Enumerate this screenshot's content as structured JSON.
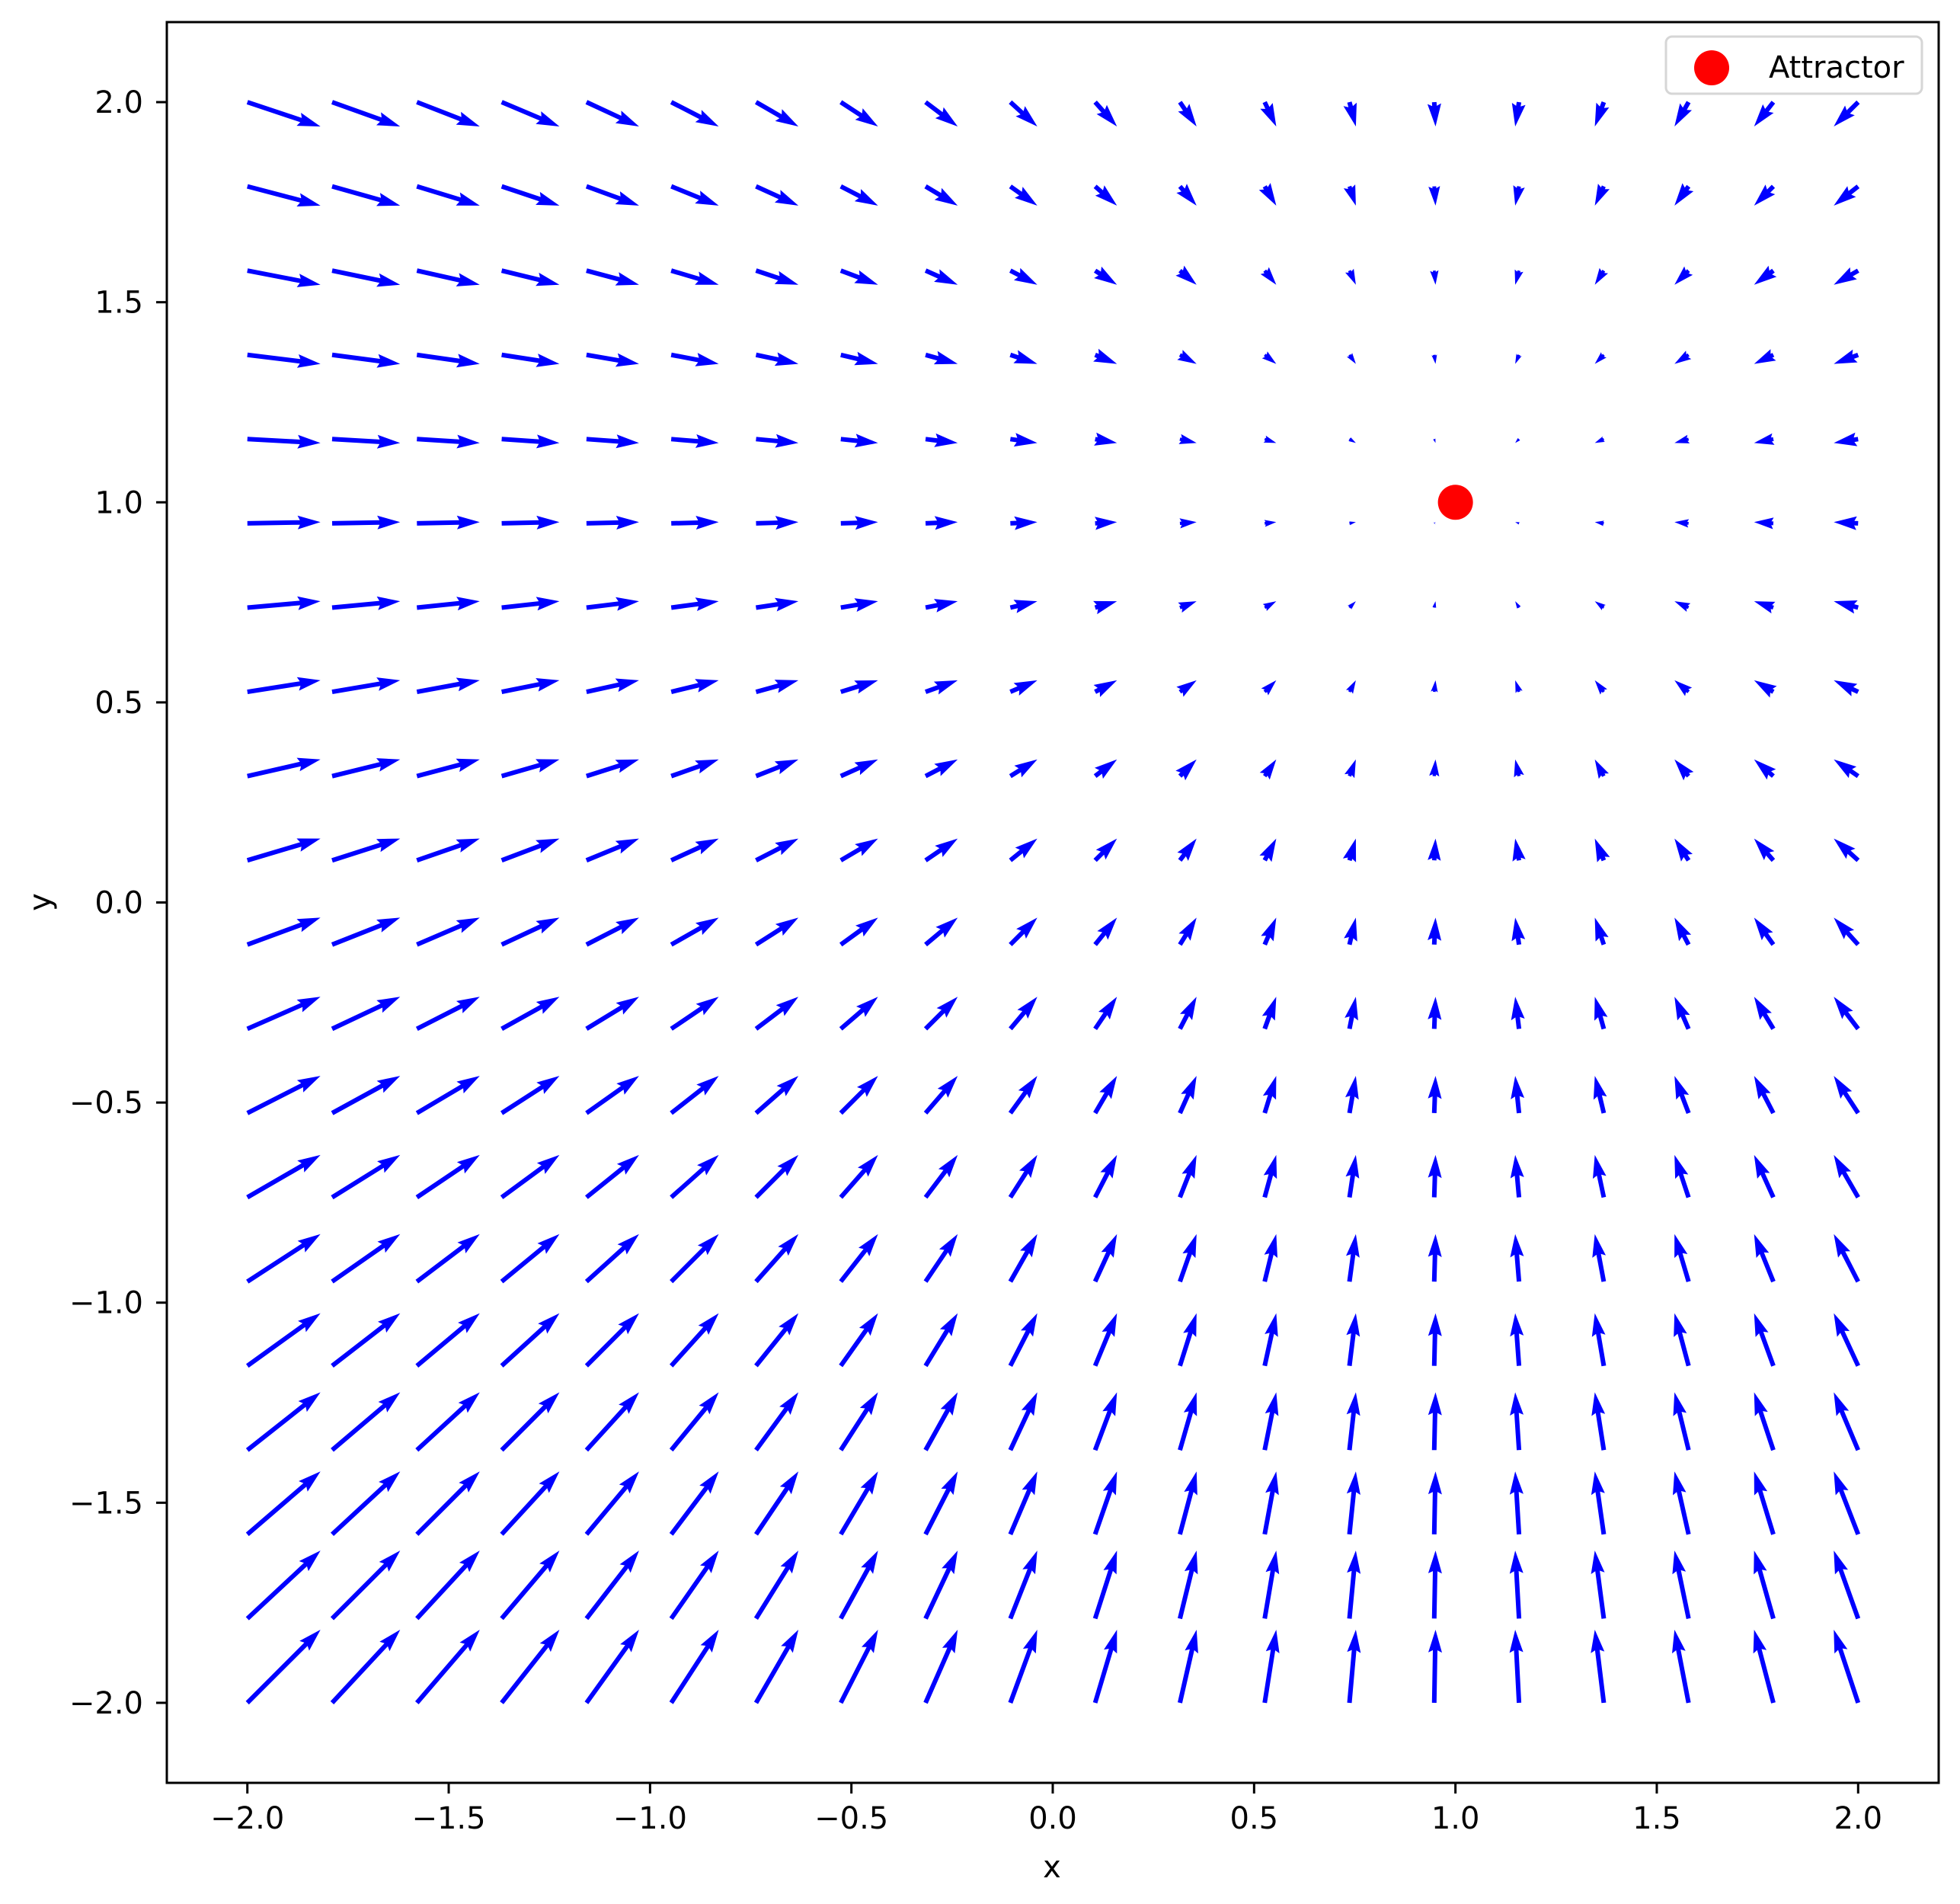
{
  "chart_data": {
    "type": "quiver",
    "title": "",
    "xlabel": "x",
    "ylabel": "y",
    "xlim": [
      -2.2,
      2.2
    ],
    "ylim": [
      -2.2,
      2.2
    ],
    "grid": false,
    "xticks": [
      -2.0,
      -1.5,
      -1.0,
      -0.5,
      0.0,
      0.5,
      1.0,
      1.5,
      2.0
    ],
    "yticks": [
      -2.0,
      -1.5,
      -1.0,
      -0.5,
      0.0,
      0.5,
      1.0,
      1.5,
      2.0
    ],
    "xtick_labels": [
      "−2.0",
      "−1.5",
      "−1.0",
      "−0.5",
      "0.0",
      "0.5",
      "1.0",
      "1.5",
      "2.0"
    ],
    "ytick_labels": [
      "−2.0",
      "−1.5",
      "−1.0",
      "−0.5",
      "0.0",
      "0.5",
      "1.0",
      "1.5",
      "2.0"
    ],
    "vector_field": {
      "description": "Vectors point toward the attractor: (u, v) = (1 - x, 1 - y)",
      "grid_x": {
        "start": -2.0,
        "stop": 2.0,
        "num": 20
      },
      "grid_y": {
        "start": -2.0,
        "stop": 2.0,
        "num": 20
      },
      "u_formula": "1 - x",
      "v_formula": "1 - y",
      "color": "#0000ff",
      "pixels_per_unit_vector": 32
    },
    "series": [
      {
        "name": "Attractor",
        "type": "scatter",
        "x": [
          1.0
        ],
        "y": [
          1.0
        ],
        "color": "#ff0000"
      }
    ],
    "legend": {
      "position": "upper right",
      "entries": [
        "Attractor"
      ]
    }
  },
  "legend": {
    "label": "Attractor"
  },
  "axes": {
    "xlabel": "x",
    "ylabel": "y"
  }
}
